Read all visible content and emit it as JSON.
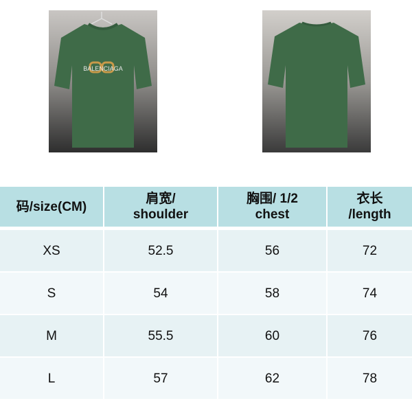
{
  "photos": {
    "front": {
      "label": "front",
      "shirt_color": "#3f6b48",
      "logo_text": "BALENCIAGA"
    },
    "back": {
      "label": "back",
      "shirt_color": "#3f6b48"
    }
  },
  "size_table": {
    "headers": [
      {
        "line1": "码/size(CM)",
        "line2": ""
      },
      {
        "line1": "肩宽/",
        "line2": "shoulder"
      },
      {
        "line1": "胸围/  1/2",
        "line2": "chest"
      },
      {
        "line1": "衣长",
        "line2": "/length"
      }
    ],
    "rows": [
      [
        "XS",
        "52.5",
        "56",
        "72"
      ],
      [
        "S",
        "54",
        "58",
        "74"
      ],
      [
        "M",
        "55.5",
        "60",
        "76"
      ],
      [
        "L",
        "57",
        "62",
        "78"
      ]
    ],
    "colors": {
      "header": "#b8dfe3",
      "row_odd": "#e7f2f4",
      "row_even": "#f2f8fa"
    }
  }
}
